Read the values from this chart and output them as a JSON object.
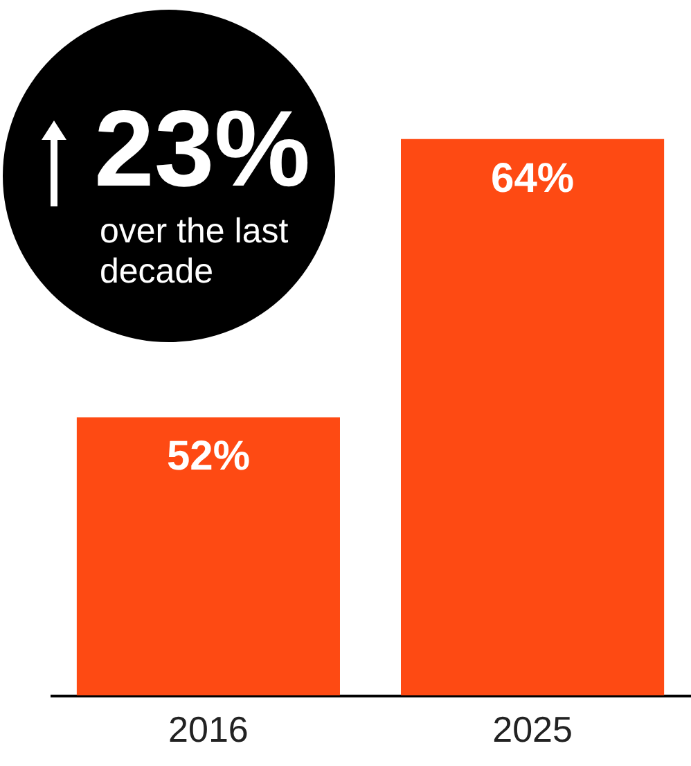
{
  "chart_data": {
    "type": "bar",
    "categories": [
      "2016",
      "2025"
    ],
    "values": [
      52,
      64
    ],
    "color": "#fe4a13",
    "ylim": [
      40,
      70
    ],
    "value_labels": [
      "52%",
      "64%"
    ],
    "annotations": [
      "23%",
      "over the last decade"
    ]
  }
}
